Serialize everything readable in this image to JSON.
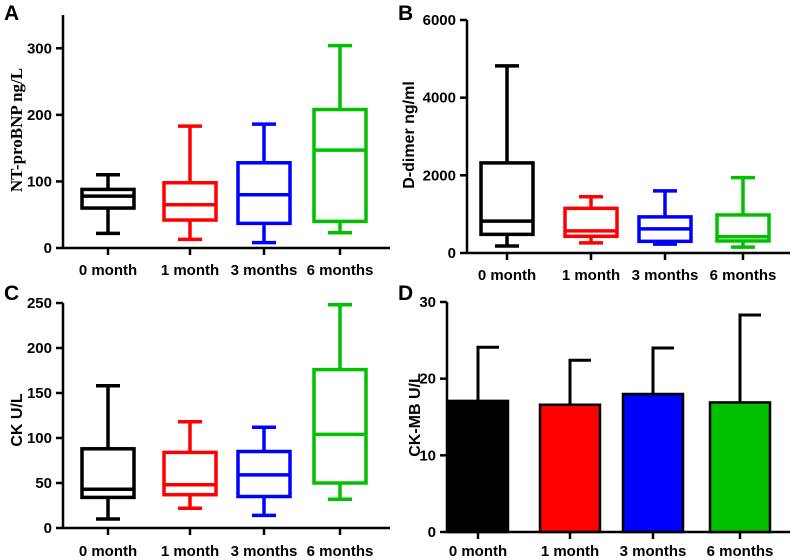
{
  "colors": {
    "black": "#000000",
    "red": "#ff0000",
    "blue": "#0000ff",
    "green": "#00c000"
  },
  "chart_data": [
    {
      "panel": "A",
      "type": "boxplot",
      "ylabel": "NT-proBNP ng/L",
      "ylim": [
        0,
        350
      ],
      "yticks": [
        "0",
        "100",
        "200",
        "300"
      ],
      "categories": [
        "0 month",
        "1 month",
        "3 months",
        "6 months"
      ],
      "boxes": [
        {
          "min": 22,
          "q1": 60,
          "median": 78,
          "q3": 88,
          "max": 110
        },
        {
          "min": 13,
          "q1": 42,
          "median": 65,
          "q3": 98,
          "max": 183
        },
        {
          "min": 8,
          "q1": 37,
          "median": 80,
          "q3": 128,
          "max": 186
        },
        {
          "min": 23,
          "q1": 40,
          "median": 147,
          "q3": 208,
          "max": 304
        }
      ]
    },
    {
      "panel": "B",
      "type": "boxplot",
      "ylabel": "D-dimer ng/ml",
      "ylim": [
        0,
        6000
      ],
      "yticks": [
        "0",
        "2000",
        "4000",
        "6000"
      ],
      "categories": [
        "0 month",
        "1 month",
        "3 months",
        "6 months"
      ],
      "boxes": [
        {
          "min": 180,
          "q1": 480,
          "median": 820,
          "q3": 2320,
          "max": 4820
        },
        {
          "min": 260,
          "q1": 430,
          "median": 570,
          "q3": 1150,
          "max": 1450
        },
        {
          "min": 230,
          "q1": 300,
          "median": 620,
          "q3": 930,
          "max": 1600
        },
        {
          "min": 150,
          "q1": 310,
          "median": 420,
          "q3": 980,
          "max": 1940
        }
      ]
    },
    {
      "panel": "C",
      "type": "boxplot",
      "ylabel": "CK U/L",
      "ylim": [
        0,
        250
      ],
      "yticks": [
        "0",
        "50",
        "100",
        "150",
        "200",
        "250"
      ],
      "categories": [
        "0 month",
        "1 month",
        "3 months",
        "6 months"
      ],
      "boxes": [
        {
          "min": 10,
          "q1": 34,
          "median": 43,
          "q3": 88,
          "max": 158
        },
        {
          "min": 22,
          "q1": 37,
          "median": 48,
          "q3": 84,
          "max": 118
        },
        {
          "min": 14,
          "q1": 35,
          "median": 59,
          "q3": 85,
          "max": 112
        },
        {
          "min": 32,
          "q1": 50,
          "median": 104,
          "q3": 176,
          "max": 248
        }
      ]
    },
    {
      "panel": "D",
      "type": "bar",
      "ylabel": "CK-MB U/L",
      "ylim": [
        0,
        30
      ],
      "yticks": [
        "0",
        "10",
        "20",
        "30"
      ],
      "categories": [
        "0 month",
        "1 month",
        "3 months",
        "6 months"
      ],
      "values": [
        17.1,
        16.6,
        18.0,
        16.9
      ],
      "errors": [
        7.0,
        5.8,
        6.0,
        11.4
      ]
    }
  ]
}
